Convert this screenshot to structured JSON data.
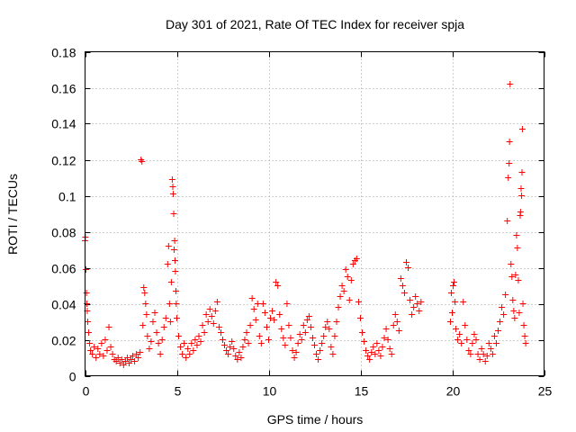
{
  "chart_data": {
    "type": "scatter",
    "title": "Day 301 of 2021, Rate Of TEC Index for receiver spja",
    "xlabel": "GPS time / hours",
    "ylabel": "ROTI / TECUs",
    "xlim": [
      0,
      25
    ],
    "ylim": [
      0,
      0.18
    ],
    "x_ticks": [
      0,
      5,
      10,
      15,
      20,
      25
    ],
    "x_tick_labels": [
      "0",
      "5",
      "10",
      "15",
      "20",
      "25"
    ],
    "y_ticks": [
      0,
      0.02,
      0.04,
      0.06,
      0.08,
      0.1,
      0.12,
      0.14,
      0.16,
      0.18
    ],
    "y_tick_labels": [
      "0",
      "0.02",
      "0.04",
      "0.06",
      "0.08",
      "0.1",
      "0.12",
      "0.14",
      "0.16",
      "0.18"
    ],
    "grid": true,
    "marker": "+",
    "marker_color": "#ff0000",
    "series": [
      {
        "name": "ROTI",
        "points": [
          [
            0.0,
            0.075
          ],
          [
            0.02,
            0.077
          ],
          [
            0.05,
            0.059
          ],
          [
            0.08,
            0.046
          ],
          [
            0.1,
            0.04
          ],
          [
            0.12,
            0.036
          ],
          [
            0.15,
            0.03
          ],
          [
            0.2,
            0.024
          ],
          [
            0.25,
            0.018
          ],
          [
            0.3,
            0.014
          ],
          [
            0.4,
            0.012
          ],
          [
            0.5,
            0.016
          ],
          [
            0.6,
            0.01
          ],
          [
            0.7,
            0.015
          ],
          [
            0.8,
            0.012
          ],
          [
            0.9,
            0.018
          ],
          [
            1.0,
            0.011
          ],
          [
            1.1,
            0.02
          ],
          [
            1.2,
            0.014
          ],
          [
            1.3,
            0.027
          ],
          [
            1.4,
            0.016
          ],
          [
            1.5,
            0.012
          ],
          [
            1.6,
            0.009
          ],
          [
            1.7,
            0.008
          ],
          [
            1.8,
            0.01
          ],
          [
            1.9,
            0.007
          ],
          [
            2.0,
            0.009
          ],
          [
            2.1,
            0.006
          ],
          [
            2.2,
            0.008
          ],
          [
            2.3,
            0.01
          ],
          [
            2.4,
            0.007
          ],
          [
            2.5,
            0.009
          ],
          [
            2.6,
            0.011
          ],
          [
            2.7,
            0.008
          ],
          [
            2.8,
            0.012
          ],
          [
            2.9,
            0.01
          ],
          [
            3.0,
            0.013
          ],
          [
            3.05,
            0.12
          ],
          [
            3.1,
            0.119
          ],
          [
            3.15,
            0.028
          ],
          [
            3.2,
            0.049
          ],
          [
            3.25,
            0.046
          ],
          [
            3.3,
            0.04
          ],
          [
            3.35,
            0.034
          ],
          [
            3.4,
            0.022
          ],
          [
            3.5,
            0.015
          ],
          [
            3.6,
            0.019
          ],
          [
            3.7,
            0.03
          ],
          [
            3.8,
            0.035
          ],
          [
            3.9,
            0.024
          ],
          [
            4.0,
            0.018
          ],
          [
            4.1,
            0.012
          ],
          [
            4.2,
            0.02
          ],
          [
            4.3,
            0.027
          ],
          [
            4.4,
            0.032
          ],
          [
            4.5,
            0.062
          ],
          [
            4.55,
            0.072
          ],
          [
            4.6,
            0.04
          ],
          [
            4.65,
            0.03
          ],
          [
            4.7,
            0.052
          ],
          [
            4.75,
            0.109
          ],
          [
            4.78,
            0.105
          ],
          [
            4.8,
            0.101
          ],
          [
            4.83,
            0.09
          ],
          [
            4.85,
            0.07
          ],
          [
            4.88,
            0.075
          ],
          [
            4.9,
            0.064
          ],
          [
            4.92,
            0.058
          ],
          [
            4.95,
            0.047
          ],
          [
            4.97,
            0.04
          ],
          [
            5.0,
            0.032
          ],
          [
            5.1,
            0.022
          ],
          [
            5.2,
            0.016
          ],
          [
            5.3,
            0.012
          ],
          [
            5.4,
            0.018
          ],
          [
            5.5,
            0.01
          ],
          [
            5.6,
            0.015
          ],
          [
            5.7,
            0.012
          ],
          [
            5.8,
            0.018
          ],
          [
            5.9,
            0.014
          ],
          [
            6.0,
            0.02
          ],
          [
            6.1,
            0.017
          ],
          [
            6.2,
            0.022
          ],
          [
            6.3,
            0.019
          ],
          [
            6.4,
            0.028
          ],
          [
            6.5,
            0.024
          ],
          [
            6.6,
            0.034
          ],
          [
            6.7,
            0.03
          ],
          [
            6.8,
            0.037
          ],
          [
            6.9,
            0.033
          ],
          [
            7.0,
            0.029
          ],
          [
            7.1,
            0.036
          ],
          [
            7.2,
            0.041
          ],
          [
            7.3,
            0.027
          ],
          [
            7.4,
            0.024
          ],
          [
            7.5,
            0.02
          ],
          [
            7.6,
            0.017
          ],
          [
            7.7,
            0.014
          ],
          [
            7.8,
            0.012
          ],
          [
            7.9,
            0.016
          ],
          [
            8.0,
            0.019
          ],
          [
            8.1,
            0.015
          ],
          [
            8.2,
            0.011
          ],
          [
            8.3,
            0.009
          ],
          [
            8.4,
            0.013
          ],
          [
            8.5,
            0.01
          ],
          [
            8.6,
            0.016
          ],
          [
            8.7,
            0.02
          ],
          [
            8.8,
            0.024
          ],
          [
            8.9,
            0.018
          ],
          [
            9.0,
            0.028
          ],
          [
            9.1,
            0.043
          ],
          [
            9.2,
            0.037
          ],
          [
            9.3,
            0.031
          ],
          [
            9.4,
            0.04
          ],
          [
            9.5,
            0.022
          ],
          [
            9.6,
            0.018
          ],
          [
            9.7,
            0.04
          ],
          [
            9.8,
            0.035
          ],
          [
            9.9,
            0.027
          ],
          [
            10.0,
            0.02
          ],
          [
            10.1,
            0.032
          ],
          [
            10.2,
            0.036
          ],
          [
            10.3,
            0.031
          ],
          [
            10.4,
            0.052
          ],
          [
            10.5,
            0.05
          ],
          [
            10.6,
            0.034
          ],
          [
            10.7,
            0.026
          ],
          [
            10.8,
            0.021
          ],
          [
            10.9,
            0.017
          ],
          [
            11.0,
            0.04
          ],
          [
            11.1,
            0.028
          ],
          [
            11.2,
            0.021
          ],
          [
            11.3,
            0.014
          ],
          [
            11.4,
            0.01
          ],
          [
            11.5,
            0.013
          ],
          [
            11.6,
            0.018
          ],
          [
            11.7,
            0.023
          ],
          [
            11.8,
            0.02
          ],
          [
            11.9,
            0.028
          ],
          [
            12.0,
            0.024
          ],
          [
            12.1,
            0.031
          ],
          [
            12.2,
            0.033
          ],
          [
            12.3,
            0.027
          ],
          [
            12.4,
            0.021
          ],
          [
            12.5,
            0.017
          ],
          [
            12.6,
            0.012
          ],
          [
            12.7,
            0.009
          ],
          [
            12.8,
            0.014
          ],
          [
            12.9,
            0.018
          ],
          [
            13.0,
            0.022
          ],
          [
            13.1,
            0.027
          ],
          [
            13.2,
            0.03
          ],
          [
            13.3,
            0.026
          ],
          [
            13.4,
            0.016
          ],
          [
            13.5,
            0.012
          ],
          [
            13.6,
            0.022
          ],
          [
            13.7,
            0.03
          ],
          [
            13.8,
            0.038
          ],
          [
            13.9,
            0.044
          ],
          [
            14.0,
            0.05
          ],
          [
            14.1,
            0.047
          ],
          [
            14.2,
            0.059
          ],
          [
            14.3,
            0.055
          ],
          [
            14.4,
            0.042
          ],
          [
            14.5,
            0.053
          ],
          [
            14.6,
            0.062
          ],
          [
            14.7,
            0.064
          ],
          [
            14.8,
            0.065
          ],
          [
            14.9,
            0.041
          ],
          [
            15.0,
            0.032
          ],
          [
            15.1,
            0.024
          ],
          [
            15.2,
            0.019
          ],
          [
            15.3,
            0.014
          ],
          [
            15.4,
            0.011
          ],
          [
            15.5,
            0.009
          ],
          [
            15.6,
            0.013
          ],
          [
            15.7,
            0.016
          ],
          [
            15.8,
            0.012
          ],
          [
            15.9,
            0.018
          ],
          [
            16.0,
            0.014
          ],
          [
            16.1,
            0.011
          ],
          [
            16.2,
            0.016
          ],
          [
            16.3,
            0.021
          ],
          [
            16.4,
            0.026
          ],
          [
            16.5,
            0.02
          ],
          [
            16.6,
            0.015
          ],
          [
            16.7,
            0.012
          ],
          [
            16.8,
            0.028
          ],
          [
            16.9,
            0.034
          ],
          [
            17.0,
            0.03
          ],
          [
            17.1,
            0.025
          ],
          [
            17.2,
            0.054
          ],
          [
            17.3,
            0.05
          ],
          [
            17.4,
            0.046
          ],
          [
            17.5,
            0.063
          ],
          [
            17.6,
            0.06
          ],
          [
            17.7,
            0.042
          ],
          [
            17.8,
            0.034
          ],
          [
            17.9,
            0.038
          ],
          [
            18.0,
            0.044
          ],
          [
            18.1,
            0.04
          ],
          [
            18.2,
            0.036
          ],
          [
            18.3,
            0.041
          ],
          [
            19.9,
            0.03
          ],
          [
            19.95,
            0.046
          ],
          [
            20.0,
            0.035
          ],
          [
            20.05,
            0.05
          ],
          [
            20.1,
            0.052
          ],
          [
            20.15,
            0.041
          ],
          [
            20.2,
            0.026
          ],
          [
            20.3,
            0.02
          ],
          [
            20.4,
            0.023
          ],
          [
            20.5,
            0.018
          ],
          [
            20.6,
            0.041
          ],
          [
            20.7,
            0.028
          ],
          [
            20.8,
            0.02
          ],
          [
            20.9,
            0.014
          ],
          [
            21.0,
            0.012
          ],
          [
            21.1,
            0.018
          ],
          [
            21.2,
            0.023
          ],
          [
            21.3,
            0.02
          ],
          [
            21.4,
            0.012
          ],
          [
            21.5,
            0.009
          ],
          [
            21.6,
            0.015
          ],
          [
            21.7,
            0.012
          ],
          [
            21.8,
            0.008
          ],
          [
            21.9,
            0.011
          ],
          [
            22.0,
            0.018
          ],
          [
            22.1,
            0.015
          ],
          [
            22.2,
            0.012
          ],
          [
            22.3,
            0.022
          ],
          [
            22.4,
            0.018
          ],
          [
            22.5,
            0.025
          ],
          [
            22.6,
            0.03
          ],
          [
            22.7,
            0.038
          ],
          [
            22.8,
            0.034
          ],
          [
            22.9,
            0.045
          ],
          [
            23.0,
            0.086
          ],
          [
            23.05,
            0.11
          ],
          [
            23.1,
            0.118
          ],
          [
            23.12,
            0.13
          ],
          [
            23.15,
            0.162
          ],
          [
            23.2,
            0.062
          ],
          [
            23.25,
            0.055
          ],
          [
            23.3,
            0.042
          ],
          [
            23.35,
            0.036
          ],
          [
            23.4,
            0.032
          ],
          [
            23.45,
            0.056
          ],
          [
            23.5,
            0.078
          ],
          [
            23.55,
            0.071
          ],
          [
            23.6,
            0.053
          ],
          [
            23.65,
            0.035
          ],
          [
            23.7,
            0.089
          ],
          [
            23.72,
            0.091
          ],
          [
            23.75,
            0.104
          ],
          [
            23.78,
            0.1
          ],
          [
            23.8,
            0.113
          ],
          [
            23.82,
            0.137
          ],
          [
            23.85,
            0.04
          ],
          [
            23.9,
            0.028
          ],
          [
            23.95,
            0.022
          ],
          [
            24.0,
            0.018
          ]
        ]
      }
    ]
  }
}
